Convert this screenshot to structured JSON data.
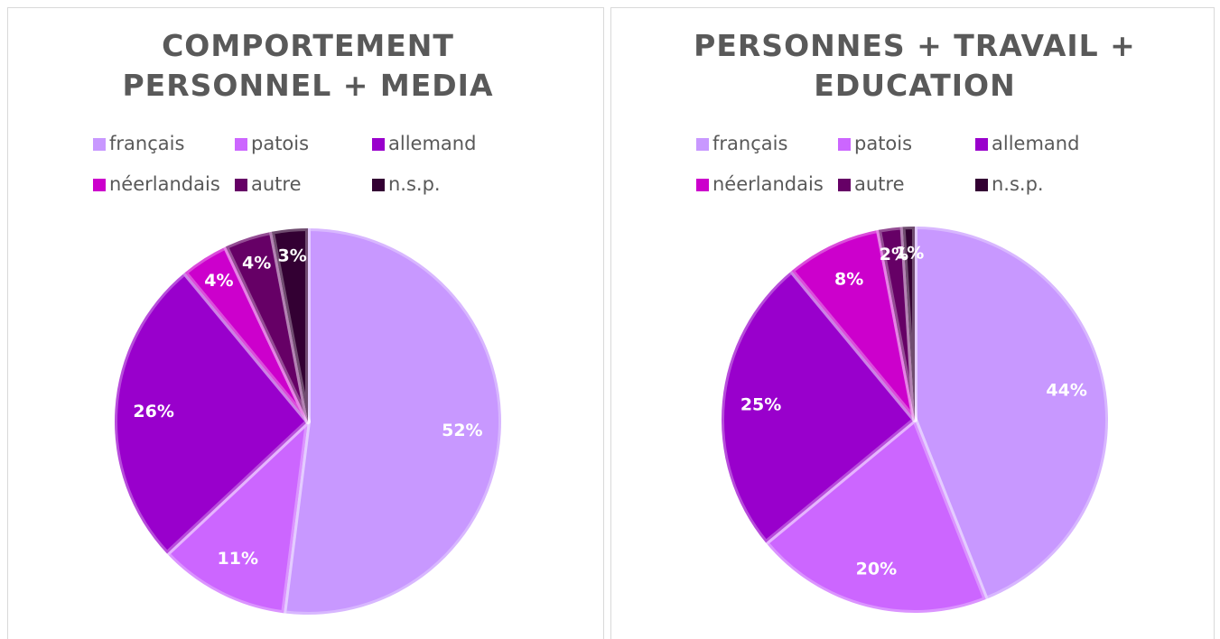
{
  "chart_data": [
    {
      "type": "pie",
      "title": [
        "COMPORTEMENT",
        "PERSONNEL + MEDIA"
      ],
      "categories": [
        "français",
        "patois",
        "allemand",
        "néerlandais",
        "autre",
        "n.s.p."
      ],
      "values": [
        52,
        11,
        26,
        4,
        4,
        3
      ],
      "value_labels": [
        "52%",
        "11%",
        "26%",
        "4%",
        "4%",
        "3%"
      ],
      "colors": [
        "#c898ff",
        "#cc66ff",
        "#9900cc",
        "#cc00cc",
        "#660066",
        "#330033"
      ],
      "legend": "top"
    },
    {
      "type": "pie",
      "title": [
        "PERSONNES + TRAVAIL +",
        "EDUCATION"
      ],
      "categories": [
        "français",
        "patois",
        "allemand",
        "néerlandais",
        "autre",
        "n.s.p."
      ],
      "values": [
        44,
        20,
        25,
        8,
        2,
        1
      ],
      "value_labels": [
        "44%",
        "20%",
        "25%",
        "8%",
        "2%",
        "1%"
      ],
      "colors": [
        "#c898ff",
        "#cc66ff",
        "#9900cc",
        "#cc00cc",
        "#660066",
        "#330033"
      ],
      "legend": "top"
    }
  ]
}
